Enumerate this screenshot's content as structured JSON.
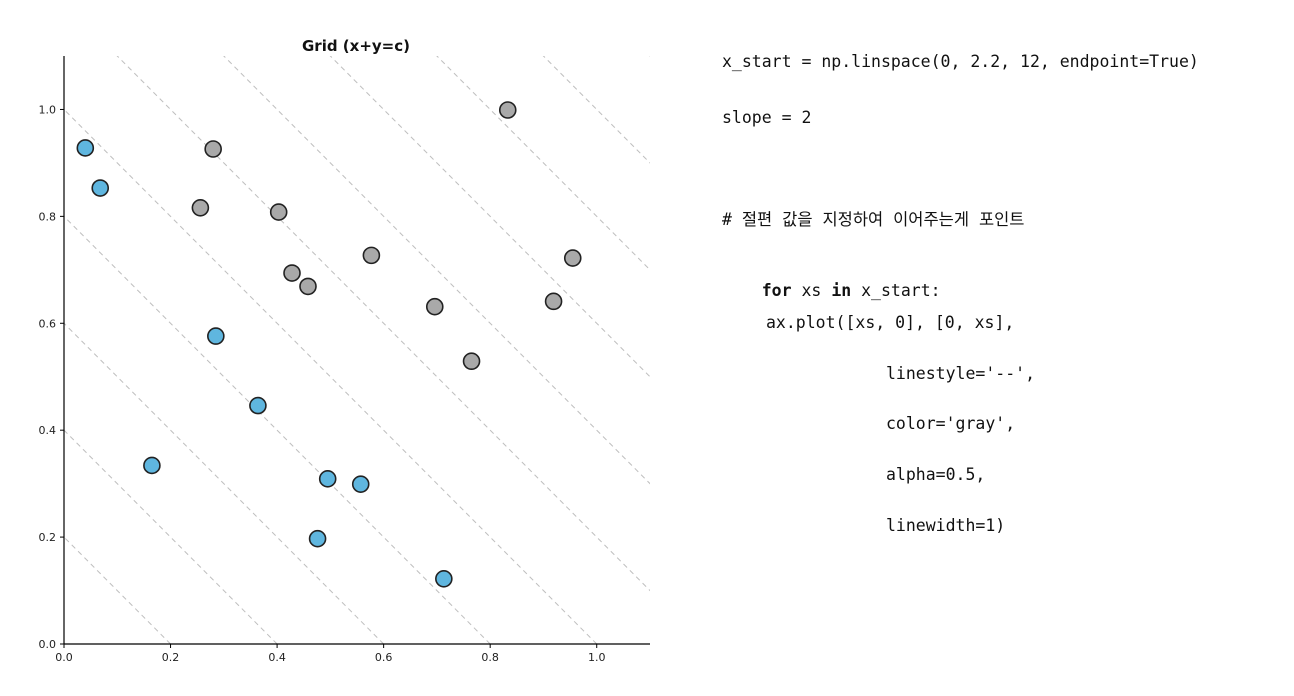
{
  "chart_data": {
    "type": "scatter",
    "title": "Grid (x+y=c)",
    "xlabel": "",
    "ylabel": "",
    "xlim": [
      0.0,
      1.1
    ],
    "ylim": [
      0.0,
      1.1
    ],
    "x_ticks": [
      "0.0",
      "0.2",
      "0.4",
      "0.6",
      "0.8",
      "1.0"
    ],
    "y_ticks": [
      "0.0",
      "0.2",
      "0.4",
      "0.6",
      "0.8",
      "1.0"
    ],
    "grid": "diagonal dashed lines x+y=c",
    "grid_lines": {
      "intercepts": [
        0.0,
        0.2,
        0.4,
        0.6,
        0.8,
        1.0,
        1.2,
        1.4,
        1.6,
        1.8,
        2.0,
        2.2
      ],
      "color": "#808080",
      "linestyle": "--",
      "alpha": 0.5
    },
    "series": [
      {
        "color": "#5fb6df",
        "points": [
          [
            0.04,
            0.928
          ],
          [
            0.068,
            0.853
          ],
          [
            0.285,
            0.576
          ],
          [
            0.364,
            0.446
          ],
          [
            0.165,
            0.334
          ],
          [
            0.495,
            0.309
          ],
          [
            0.557,
            0.299
          ],
          [
            0.476,
            0.197
          ],
          [
            0.713,
            0.122
          ]
        ]
      },
      {
        "color": "#a9a9a9",
        "points": [
          [
            0.833,
            0.999
          ],
          [
            0.28,
            0.926
          ],
          [
            0.256,
            0.816
          ],
          [
            0.403,
            0.808
          ],
          [
            0.577,
            0.727
          ],
          [
            0.955,
            0.722
          ],
          [
            0.428,
            0.694
          ],
          [
            0.458,
            0.669
          ],
          [
            0.919,
            0.641
          ],
          [
            0.696,
            0.631
          ],
          [
            0.765,
            0.529
          ]
        ]
      }
    ]
  },
  "code": {
    "line1": "x_start = np.linspace(0, 2.2, 12, endpoint=True)",
    "line2": "slope = 2",
    "line3": "# 절편 값을 지정하여 이어주는게 포인트",
    "line4_kw1": "for",
    "line4_var": " xs ",
    "line4_kw2": "in",
    "line4_rest": " x_start:",
    "line5": "ax.plot([xs, 0], [0, xs],",
    "line6": "linestyle='--',",
    "line7": "color='gray',",
    "line8": "alpha=0.5,",
    "line9": "linewidth=1)"
  }
}
